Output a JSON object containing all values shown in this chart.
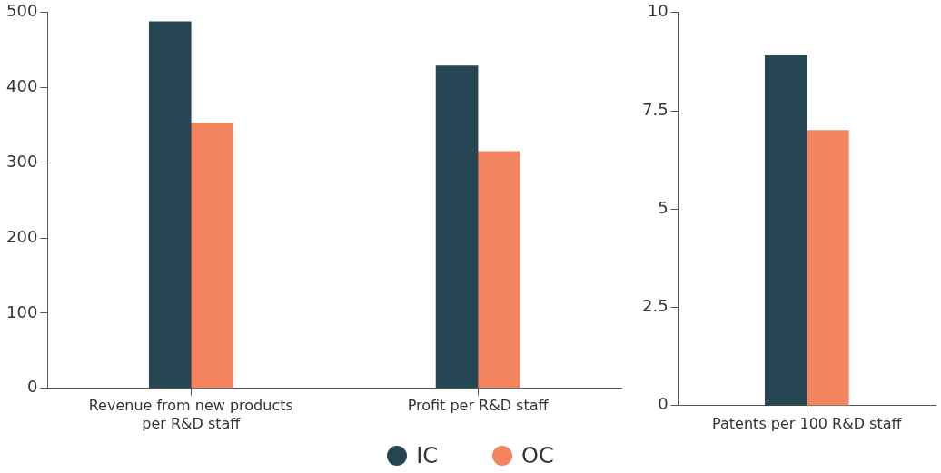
{
  "chart_data": [
    {
      "type": "bar",
      "categories": [
        "Revenue from new products per R&D staff",
        "Profit per R&D staff"
      ],
      "series": [
        {
          "name": "IC",
          "color": "#264653",
          "values": [
            488,
            429
          ]
        },
        {
          "name": "OC",
          "color": "#f4845f",
          "values": [
            353,
            315
          ]
        }
      ],
      "ylim": [
        0,
        500
      ],
      "yticks": [
        0,
        100,
        200,
        300,
        400,
        500
      ],
      "grid": false,
      "legend": "bottom"
    },
    {
      "type": "bar",
      "categories": [
        "Patents per 100 R&D staff"
      ],
      "series": [
        {
          "color": "#264653",
          "values": [
            8.9
          ]
        },
        {
          "color": "#f4845f",
          "values": [
            7.0
          ]
        }
      ],
      "ylim": [
        0,
        10
      ],
      "yticks": [
        0,
        2.5,
        5,
        7.5,
        10
      ],
      "grid": false
    }
  ]
}
